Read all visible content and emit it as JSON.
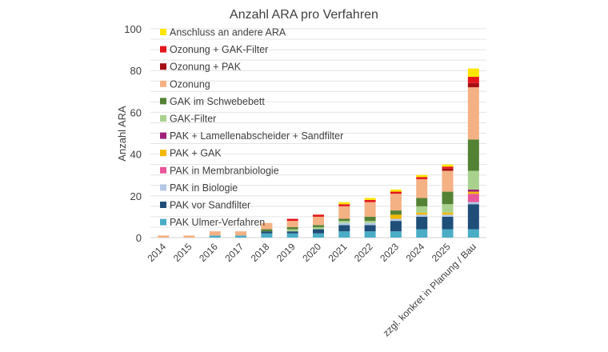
{
  "chart_data": {
    "type": "bar",
    "stacked": true,
    "title": "Anzahl ARA pro Verfahren",
    "xlabel": "",
    "ylabel": "Anzahl ARA",
    "ylim": [
      0,
      100
    ],
    "yticks": [
      0,
      20,
      40,
      60,
      80,
      100
    ],
    "grid": true,
    "legend_position": "top-left (inside)",
    "categories": [
      "2014",
      "2015",
      "2016",
      "2017",
      "2018",
      "2019",
      "2020",
      "2021",
      "2022",
      "2023",
      "2024",
      "2025",
      "zzgl. konkret in Planung / Bau"
    ],
    "series": [
      {
        "name": "PAK Ulmer-Verfahren",
        "color": "#4bacc6",
        "values": [
          0,
          0,
          1,
          1,
          2,
          2,
          2,
          3,
          3,
          3,
          4,
          4,
          4
        ]
      },
      {
        "name": "PAK vor Sandfilter",
        "color": "#1f4e79",
        "values": [
          0,
          0,
          0,
          0,
          1,
          1,
          2,
          3,
          3,
          5,
          6,
          6,
          12
        ]
      },
      {
        "name": "PAK in Biologie",
        "color": "#b4c7e7",
        "values": [
          0,
          0,
          0,
          0,
          0,
          0,
          0,
          1,
          1,
          1,
          1,
          1,
          1
        ]
      },
      {
        "name": "PAK in Membranbiologie",
        "color": "#e8579a",
        "values": [
          0,
          0,
          0,
          0,
          0,
          0,
          0,
          0,
          0,
          0,
          0,
          0,
          4
        ]
      },
      {
        "name": "PAK + GAK",
        "color": "#f2b800",
        "values": [
          0,
          0,
          0,
          0,
          0,
          0,
          0,
          0,
          0,
          2,
          1,
          1,
          1
        ]
      },
      {
        "name": "PAK + Lamellenabscheider + Sandfilter",
        "color": "#a0207a",
        "values": [
          0,
          0,
          0,
          0,
          0,
          0,
          0,
          0,
          0,
          0,
          0,
          0,
          1
        ]
      },
      {
        "name": "GAK-Filter",
        "color": "#a9d18e",
        "values": [
          0,
          0,
          0,
          0,
          0,
          1,
          1,
          1,
          1,
          0,
          3,
          4,
          9
        ]
      },
      {
        "name": "GAK im Schwebebett",
        "color": "#548235",
        "values": [
          0,
          0,
          0,
          0,
          1,
          1,
          1,
          1,
          2,
          2,
          4,
          6,
          15
        ]
      },
      {
        "name": "Ozonung",
        "color": "#f4b183",
        "values": [
          1,
          1,
          2,
          2,
          3,
          3,
          4,
          6,
          7,
          8,
          9,
          10,
          25
        ]
      },
      {
        "name": "Ozonung + PAK",
        "color": "#a50f15",
        "values": [
          0,
          0,
          0,
          0,
          0,
          0,
          0,
          0,
          0,
          0,
          0,
          1,
          2
        ]
      },
      {
        "name": "Ozonung + GAK-Filter",
        "color": "#e3161b",
        "values": [
          0,
          0,
          0,
          0,
          0,
          1,
          1,
          1,
          1,
          1,
          1,
          1,
          3
        ]
      },
      {
        "name": "Anschluss an andere ARA",
        "color": "#ffe600",
        "values": [
          0,
          0,
          0,
          0,
          0,
          0,
          0,
          1,
          1,
          1,
          1,
          1,
          4
        ]
      }
    ]
  }
}
